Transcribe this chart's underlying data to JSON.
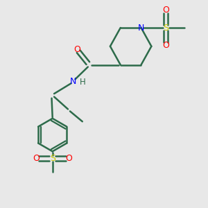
{
  "bg_color": "#e8e8e8",
  "bond_color": "#2d6b4a",
  "n_color": "#0000ff",
  "o_color": "#ff0000",
  "s_color": "#cccc00",
  "figsize": [
    3.0,
    3.0
  ],
  "dpi": 100,
  "xlim": [
    0,
    10
  ],
  "ylim": [
    0,
    10
  ]
}
